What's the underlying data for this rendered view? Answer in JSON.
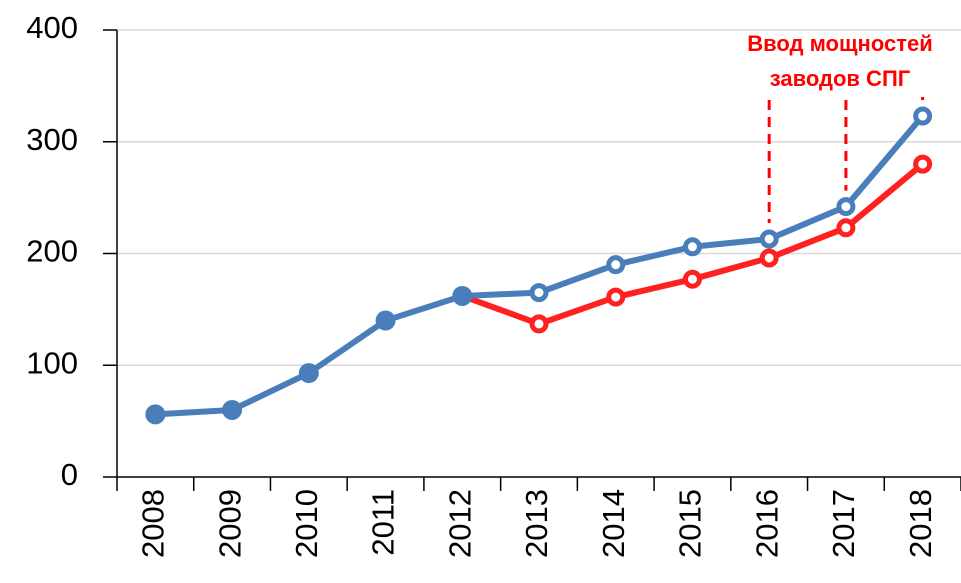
{
  "chart_data": {
    "type": "line",
    "annotation": [
      "Ввод мощностей",
      "заводов СПГ"
    ],
    "annotation_color": "#ff0000",
    "categories": [
      "2008",
      "2009",
      "2010",
      "2011",
      "2012",
      "2013",
      "2014",
      "2015",
      "2016",
      "2017",
      "2018"
    ],
    "series": [
      {
        "color": "#ff2020",
        "values": [
          null,
          null,
          null,
          null,
          162,
          137,
          161,
          177,
          196,
          223,
          280
        ]
      },
      {
        "color": "#4a7ebb",
        "values": [
          56,
          60,
          93,
          140,
          162,
          165,
          190,
          206,
          213,
          242,
          323
        ]
      }
    ],
    "ylim": [
      0,
      400
    ],
    "yticks": [
      0,
      100,
      200,
      300,
      400
    ],
    "grid": true,
    "annotated_categories": [
      "2016",
      "2017",
      "2018"
    ]
  }
}
